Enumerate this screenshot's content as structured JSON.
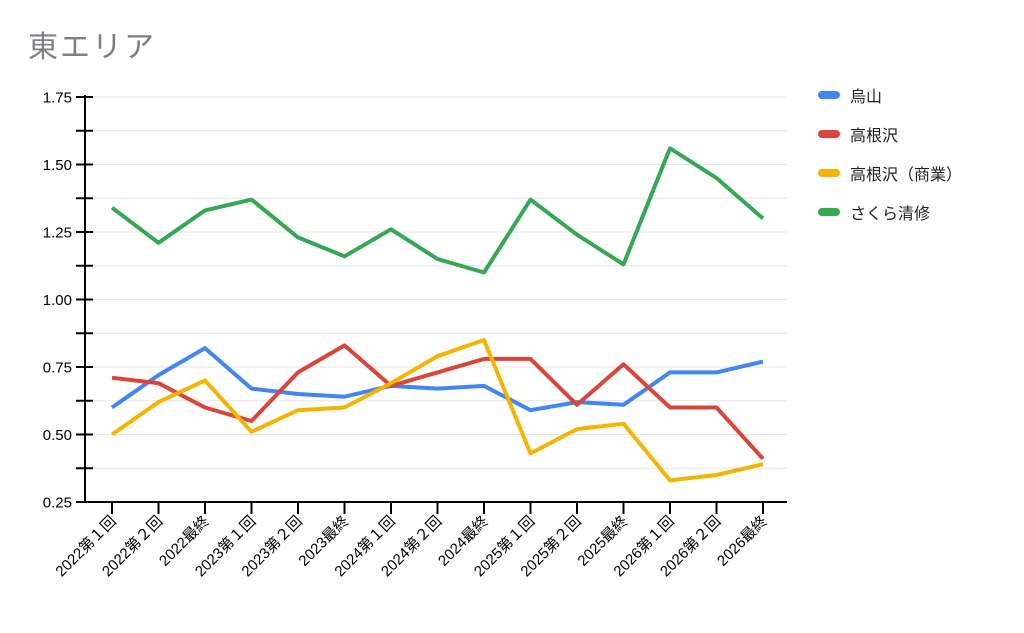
{
  "chart_data": {
    "type": "line",
    "title": "東エリア",
    "categories": [
      "2022第１回",
      "2022第２回",
      "2022最終",
      "2023第１回",
      "2023第２回",
      "2023最終",
      "2024第１回",
      "2024第２回",
      "2024最終",
      "2025第１回",
      "2025第２回",
      "2025最終",
      "2026第１回",
      "2026第２回",
      "2026最終"
    ],
    "series": [
      {
        "name": "烏山",
        "color": "#4285f4",
        "values": [
          0.6,
          0.72,
          0.82,
          0.67,
          0.65,
          0.64,
          0.68,
          0.67,
          0.68,
          0.59,
          0.62,
          0.61,
          0.73,
          0.73,
          0.77
        ]
      },
      {
        "name": "高根沢",
        "color": "#db4437",
        "values": [
          0.71,
          0.69,
          0.6,
          0.55,
          0.73,
          0.83,
          0.68,
          0.73,
          0.78,
          0.78,
          0.61,
          0.76,
          0.6,
          0.6,
          0.41
        ]
      },
      {
        "name": "高根沢（商業）",
        "color": "#f4b400",
        "values": [
          0.5,
          0.62,
          0.7,
          0.51,
          0.59,
          0.6,
          0.69,
          0.79,
          0.85,
          0.43,
          0.52,
          0.54,
          0.33,
          0.35,
          0.39
        ]
      },
      {
        "name": "さくら清修",
        "color": "#34a853",
        "values": [
          1.34,
          1.21,
          1.33,
          1.37,
          1.23,
          1.16,
          1.26,
          1.15,
          1.1,
          1.37,
          1.24,
          1.13,
          1.56,
          1.45,
          1.3
        ]
      }
    ],
    "ylim": [
      0.25,
      1.75
    ],
    "y_major_step": 0.25,
    "y_minor_step": 0.125,
    "y_tick_labels": [
      "0.25",
      "0.50",
      "0.75",
      "1.00",
      "1.25",
      "1.50",
      "1.75"
    ],
    "xlabel": "",
    "ylabel": "",
    "grid": true,
    "legend_position": "right",
    "axis_color": "#000000",
    "gridline_color": "#e6e6e6",
    "title_color": "#7d7f82"
  }
}
